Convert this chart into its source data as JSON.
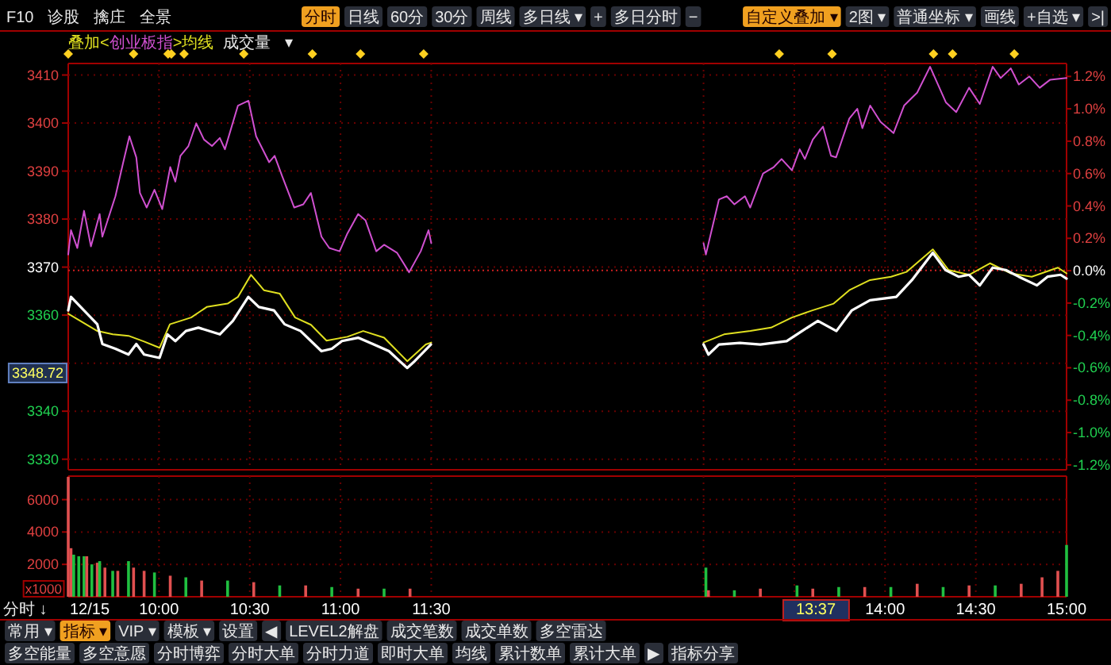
{
  "chart_data": [
    {
      "type": "line",
      "legend_title": "叠加<",
      "legend": "top left",
      "grid": true,
      "tick_labels": "y",
      "xlim": [
        9.5,
        15
      ],
      "xticks": [
        {
          "value": 9.5,
          "label": null
        },
        {
          "value": 10,
          "label": null
        },
        {
          "value": 10.5,
          "label": null
        },
        {
          "value": 11,
          "label": null
        },
        {
          "value": 11.5,
          "label": null
        },
        {
          "value": 13,
          "label": null
        },
        {
          "value": 13.5,
          "label": null
        },
        {
          "value": 14,
          "label": null
        },
        {
          "value": 14.5,
          "label": null
        },
        {
          "value": 15,
          "label": null
        }
      ],
      "ylim": [
        3327.8,
        3412.4
      ],
      "yticks": [
        3330,
        3340,
        {
          "value": 3350,
          "label": null
        },
        3360,
        3370,
        3380,
        3390,
        3400,
        3410
      ],
      "y2lim": [
        -1.23,
        1.28
      ],
      "y2ticks": [
        {
          "value": -1.2,
          "label": "-1.2%"
        },
        {
          "value": -1.0,
          "label": "-1.0%"
        },
        {
          "value": -0.8,
          "label": "-0.8%"
        },
        {
          "value": -0.6,
          "label": "-0.6%"
        },
        {
          "value": -0.4,
          "label": "-0.4%"
        },
        {
          "value": -0.2,
          "label": "-0.2%"
        },
        {
          "value": 0,
          "label": "0.0%"
        },
        {
          "value": 0.2,
          "label": "0.2%"
        },
        {
          "value": 0.4,
          "label": "0.4%"
        },
        {
          "value": 0.6,
          "label": "0.6%"
        },
        {
          "value": 0.8,
          "label": "0.8%"
        },
        {
          "value": 1.0,
          "label": "1.0%"
        },
        {
          "value": 1.2,
          "label": "1.2%"
        }
      ],
      "ref_lines": [
        {
          "axis": "y",
          "value": 3369.3,
          "color": "#d02020",
          "line_style": "dotted"
        }
      ],
      "annotations": [
        "3348.72"
      ],
      "series": [
        {
          "name": "创业板指",
          "color": "#d050d0",
          "axis": "y2",
          "x": [
            9.5,
            9.515,
            9.55,
            9.587,
            9.625,
            9.673,
            9.688,
            9.76,
            9.803,
            9.837,
            9.875,
            9.895,
            9.932,
            9.975,
            10.018,
            10.062,
            10.09,
            10.118,
            10.162,
            10.205,
            10.248,
            10.292,
            10.335,
            10.363,
            10.435,
            10.493,
            10.535,
            10.607,
            10.637,
            10.68,
            10.745,
            10.795,
            10.837,
            10.895,
            10.938,
            10.995,
            11.038,
            11.097,
            11.138,
            11.197,
            11.24,
            11.312,
            11.378,
            11.442,
            11.485,
            11.5,
            13,
            13.013,
            13.085,
            13.128,
            13.17,
            13.228,
            13.257,
            13.328,
            13.387,
            13.43,
            13.487,
            13.53,
            13.558,
            13.602,
            13.658,
            13.702,
            13.73,
            13.803,
            13.847,
            13.875,
            13.918,
            13.975,
            14.047,
            14.105,
            14.177,
            14.248,
            14.335,
            14.392,
            14.463,
            14.522,
            14.593,
            14.637,
            14.693,
            14.737,
            14.795,
            14.852,
            14.91,
            15
          ],
          "values": [
            0.1,
            0.25,
            0.14,
            0.37,
            0.15,
            0.35,
            0.21,
            0.46,
            0.67,
            0.83,
            0.7,
            0.48,
            0.39,
            0.5,
            0.38,
            0.64,
            0.55,
            0.71,
            0.77,
            0.91,
            0.81,
            0.77,
            0.82,
            0.75,
            1.02,
            1.05,
            0.83,
            0.67,
            0.71,
            0.58,
            0.39,
            0.41,
            0.48,
            0.21,
            0.14,
            0.12,
            0.23,
            0.35,
            0.31,
            0.12,
            0.16,
            0.11,
            -0.01,
            0.12,
            0.25,
            0.17,
            0.17,
            0.1,
            0.44,
            0.46,
            0.41,
            0.46,
            0.39,
            0.6,
            0.64,
            0.69,
            0.62,
            0.75,
            0.69,
            0.81,
            0.89,
            0.71,
            0.7,
            0.94,
            1.0,
            0.88,
            1.02,
            0.92,
            0.85,
            1.02,
            1.1,
            1.26,
            1.04,
            0.98,
            1.13,
            1.03,
            1.26,
            1.19,
            1.25,
            1.15,
            1.2,
            1.13,
            1.18,
            1.19
          ]
        },
        {
          "name": ">均线",
          "color": "#e0e020",
          "x": [
            9.5,
            9.66,
            9.745,
            9.832,
            9.918,
            10.003,
            10.06,
            10.177,
            10.263,
            10.378,
            10.435,
            10.507,
            10.578,
            10.665,
            10.75,
            10.837,
            10.923,
            11.038,
            11.125,
            11.24,
            11.368,
            11.47,
            11.5,
            13,
            13.113,
            13.258,
            13.372,
            13.487,
            13.6,
            13.717,
            13.803,
            13.917,
            14.033,
            14.118,
            14.263,
            14.35,
            14.463,
            14.578,
            14.693,
            14.808,
            14.952,
            15
          ],
          "values": [
            3360.3,
            3356.7,
            3356,
            3355.7,
            3354.5,
            3353.2,
            3358.1,
            3359.5,
            3361.7,
            3362.4,
            3363.8,
            3368.4,
            3365.2,
            3364.5,
            3359.5,
            3358,
            3354.7,
            3355.5,
            3356.7,
            3355.3,
            3350.4,
            3353.9,
            3354.3,
            3354.3,
            3356,
            3356.7,
            3357.4,
            3359.5,
            3361,
            3362.4,
            3365.2,
            3367.3,
            3368,
            3369,
            3373.7,
            3369.4,
            3368.4,
            3370.8,
            3368.7,
            3368,
            3369.9,
            3368.7
          ]
        },
        {
          "color": "#ffffff",
          "x": [
            9.5,
            9.515,
            9.66,
            9.688,
            9.76,
            9.832,
            9.875,
            9.918,
            10.003,
            10.047,
            10.09,
            10.148,
            10.217,
            10.335,
            10.407,
            10.492,
            10.55,
            10.633,
            10.692,
            10.78,
            10.895,
            10.952,
            11.008,
            11.097,
            11.183,
            11.267,
            11.367,
            11.408,
            11.498,
            13,
            13.027,
            13.085,
            13.2,
            13.313,
            13.458,
            13.543,
            13.63,
            13.732,
            13.817,
            13.917,
            14.062,
            14.148,
            14.263,
            14.333,
            14.405,
            14.463,
            14.522,
            14.593,
            14.665,
            14.737,
            14.837,
            14.895,
            14.967,
            15
          ],
          "values": [
            3361,
            3363.8,
            3358.1,
            3354,
            3353,
            3351.8,
            3354,
            3351.8,
            3351.1,
            3356,
            3354.6,
            3356.7,
            3357.4,
            3356,
            3358.8,
            3363.8,
            3361.7,
            3361,
            3358.1,
            3356.7,
            3352.5,
            3353,
            3354.6,
            3355.3,
            3353.9,
            3352.5,
            3349,
            3350.4,
            3353.9,
            3353.9,
            3351.8,
            3353.9,
            3354.2,
            3353.9,
            3354.6,
            3356.7,
            3358.8,
            3356.7,
            3361,
            3363.1,
            3363.8,
            3367.3,
            3373,
            3369.4,
            3368,
            3368.4,
            3366.2,
            3369.9,
            3369.4,
            3368,
            3366.2,
            3368,
            3368.4,
            3367.6
          ]
        }
      ]
    },
    {
      "type": "bar",
      "grid": true,
      "ylabel": "x1000",
      "xlim": [
        9.5,
        15
      ],
      "xticks": [
        {
          "value": 9.5,
          "label": null
        },
        {
          "value": 10,
          "label": "10:00"
        },
        {
          "value": 10.5,
          "label": "10:30"
        },
        {
          "value": 11,
          "label": "11:00"
        },
        {
          "value": 11.5,
          "label": "11:30"
        },
        {
          "value": 13,
          "label": null
        },
        {
          "value": 13.5,
          "label": null
        },
        {
          "value": 14,
          "label": "14:00"
        },
        {
          "value": 14.5,
          "label": "14:30"
        },
        {
          "value": 15,
          "label": "15:00"
        }
      ],
      "ylim": [
        0,
        7450
      ],
      "yticks": [
        2000,
        4000,
        6000
      ],
      "annotations": [
        "12/15",
        "13:37"
      ],
      "x": [
        9.5,
        9.515,
        9.53,
        9.558,
        9.587,
        9.602,
        9.63,
        9.66,
        9.673,
        9.702,
        9.745,
        9.773,
        9.832,
        9.86,
        9.918,
        9.975,
        10.062,
        10.148,
        10.235,
        10.378,
        10.522,
        10.665,
        10.808,
        10.952,
        11.097,
        11.24,
        11.383,
        13.013,
        13.027,
        13.17,
        13.313,
        13.515,
        13.602,
        13.745,
        13.888,
        14.032,
        14.177,
        14.32,
        14.463,
        14.607,
        14.75,
        14.865,
        14.952,
        15
      ],
      "values": [
        7400,
        3000,
        2600,
        2500,
        2500,
        2500,
        2000,
        2100,
        2200,
        1800,
        1600,
        1600,
        2200,
        1800,
        1600,
        1500,
        1300,
        1200,
        1000,
        1000,
        900,
        700,
        700,
        600,
        500,
        500,
        500,
        1800,
        400,
        400,
        500,
        700,
        500,
        600,
        600,
        600,
        800,
        600,
        700,
        700,
        800,
        1200,
        1600,
        3200
      ],
      "colors": [
        "#e05050",
        "#e05050",
        "#20c040",
        "#20c040",
        "#20c040",
        "#e05050",
        "#20c040",
        "#e05050",
        "#20c040",
        "#e05050",
        "#20c040",
        "#e05050",
        "#20c040",
        "#e05050",
        "#e05050",
        "#20c040",
        "#e05050",
        "#20c040",
        "#e05050",
        "#20c040",
        "#e05050",
        "#20c040",
        "#e05050",
        "#20c040",
        "#e05050",
        "#20c040",
        "#e05050",
        "#20c040",
        "#e05050",
        "#20c040",
        "#e05050",
        "#20c040",
        "#e05050",
        "#20c040",
        "#e05050",
        "#20c040",
        "#e05050",
        "#20c040",
        "#e05050",
        "#20c040",
        "#e05050",
        "#e05050",
        "#e05050",
        "#20c040"
      ]
    },
    {
      "type": "other",
      "annotations": [
        "F10",
        "诊股",
        "擒庄",
        "全景",
        "分时",
        "日线",
        "60分",
        "30分",
        "周线",
        "多日线 ▾",
        "+",
        "多日分时",
        "−",
        "自定义叠加 ▾",
        "2图 ▾",
        "普通坐标 ▾",
        "画线",
        "+自选 ▾",
        ">|",
        "成交量",
        "▾",
        "分时 ↓",
        "常用 ▾",
        "指标 ▾",
        "VIP ▾",
        "模板 ▾",
        "设置",
        "◀",
        "LEVEL2解盘",
        "成交笔数",
        "成交单数",
        "多空雷达",
        "多空能量",
        "多空意愿",
        "分时博弈",
        "分时大单",
        "分时力道",
        "即时大单",
        "均线",
        "累计数单",
        "累计大单",
        "▶",
        "指标分享"
      ]
    }
  ]
}
